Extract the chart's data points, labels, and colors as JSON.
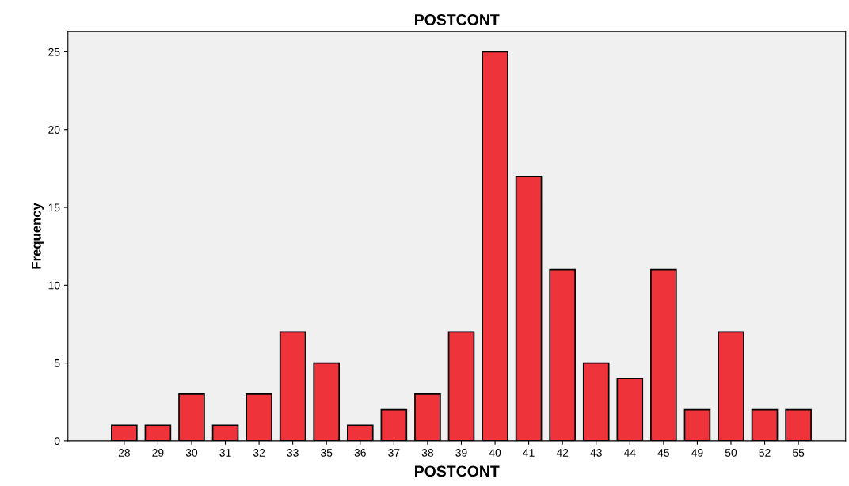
{
  "chart_data": {
    "type": "bar",
    "title": "POSTCONT",
    "xlabel": "POSTCONT",
    "ylabel": "Frequency",
    "categories": [
      "28",
      "29",
      "30",
      "31",
      "32",
      "33",
      "35",
      "36",
      "37",
      "38",
      "39",
      "40",
      "41",
      "42",
      "43",
      "44",
      "45",
      "49",
      "50",
      "52",
      "55"
    ],
    "values": [
      1,
      1,
      3,
      1,
      3,
      7,
      5,
      1,
      2,
      3,
      7,
      25,
      17,
      11,
      5,
      4,
      11,
      2,
      7,
      2,
      2
    ],
    "color": "#ef333a",
    "ylim": [
      0,
      26.3
    ],
    "yticks": [
      0,
      5,
      10,
      15,
      20,
      25
    ],
    "grid": false
  }
}
